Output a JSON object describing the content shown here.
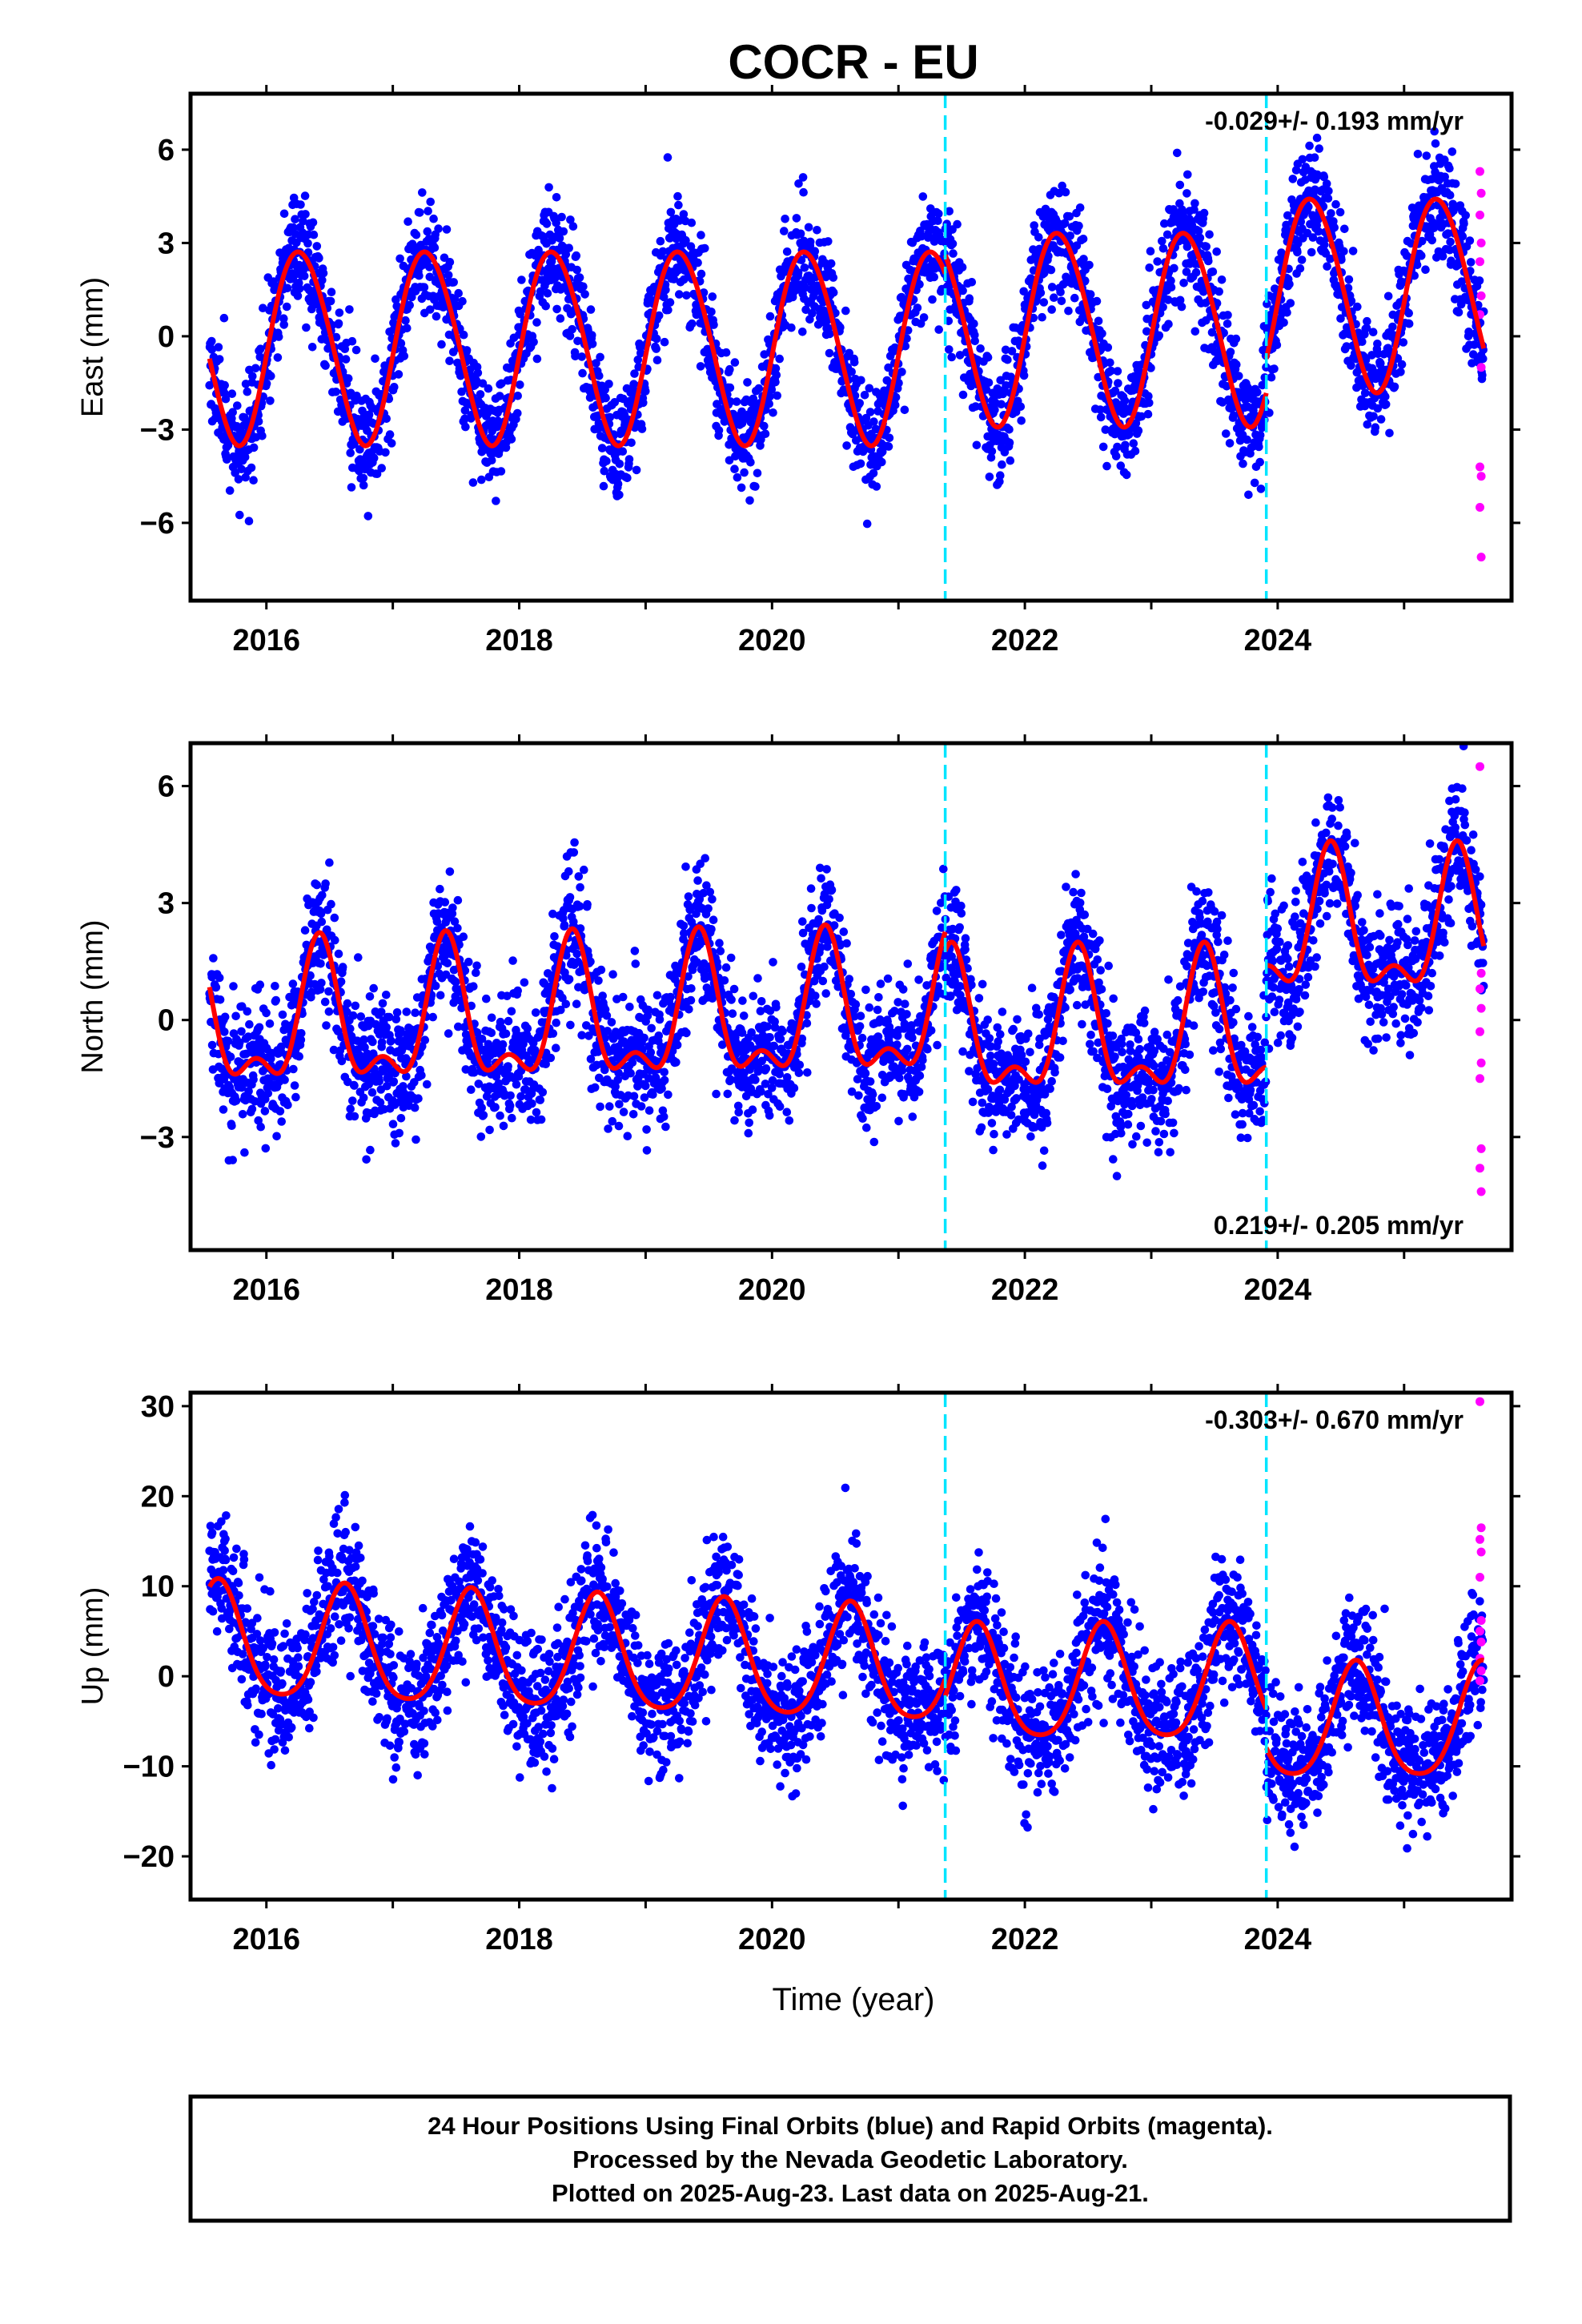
{
  "title": "COCR - EU",
  "colors": {
    "final": "#0000ff",
    "rapid": "#ff00ff",
    "model": "#ff0000",
    "event": "#00e5ff",
    "frame": "#000000"
  },
  "xlabel": "Time (year)",
  "footer": [
    "24 Hour Positions Using Final Orbits (blue) and Rapid Orbits (magenta).",
    "Processed by the Nevada Geodetic Laboratory.",
    "Plotted on 2025-Aug-23. Last data on 2025-Aug-21."
  ],
  "chart_data": [
    {
      "type": "scatter",
      "ylabel": "East (mm)",
      "rate_label": "-0.029+/- 0.193 mm/yr",
      "xlim": [
        2015.4,
        2025.85
      ],
      "ylim": [
        -8.5,
        7.8
      ],
      "x_ticks": [
        2016,
        2018,
        2020,
        2022,
        2024
      ],
      "x_tick_labels": [
        "2016",
        "2018",
        "2020",
        "2022",
        "2024"
      ],
      "y_ticks": [
        -6,
        -3,
        0,
        3,
        6
      ],
      "y_tick_labels": [
        "−6",
        "−3",
        "0",
        "3",
        "6"
      ],
      "event_lines": [
        2021.37,
        2023.91
      ],
      "model": {
        "segments": [
          {
            "start": 2015.55,
            "end": 2021.37,
            "offset": -0.3,
            "trend": 0.0,
            "annual_amp": 3.1,
            "annual_peak": 0.27,
            "semi_amp": 0.2,
            "semi_peak": 0.1
          },
          {
            "start": 2021.37,
            "end": 2023.91,
            "offset": 0.3,
            "trend": 0.0,
            "annual_amp": 3.1,
            "annual_peak": 0.27,
            "semi_amp": 0.2,
            "semi_peak": 0.1
          },
          {
            "start": 2023.91,
            "end": 2025.63,
            "offset": 1.4,
            "trend": 0.0,
            "annual_amp": 3.1,
            "annual_peak": 0.27,
            "semi_amp": 0.2,
            "semi_peak": 0.1
          }
        ],
        "scatter_sd": 0.9
      },
      "rapid_points": [
        {
          "x": 2025.6,
          "y": 5.3
        },
        {
          "x": 2025.61,
          "y": 4.6
        },
        {
          "x": 2025.6,
          "y": 3.9
        },
        {
          "x": 2025.61,
          "y": 3.0
        },
        {
          "x": 2025.6,
          "y": 2.4
        },
        {
          "x": 2025.61,
          "y": 1.3
        },
        {
          "x": 2025.6,
          "y": 0.7
        },
        {
          "x": 2025.61,
          "y": -1.0
        },
        {
          "x": 2025.6,
          "y": -4.2
        },
        {
          "x": 2025.61,
          "y": -4.5
        },
        {
          "x": 2025.6,
          "y": -5.5
        },
        {
          "x": 2025.61,
          "y": -7.1
        }
      ]
    },
    {
      "type": "scatter",
      "ylabel": "North (mm)",
      "rate_label": "0.219+/- 0.205 mm/yr",
      "xlim": [
        2015.4,
        2025.85
      ],
      "ylim": [
        -5.9,
        7.1
      ],
      "x_ticks": [
        2016,
        2018,
        2020,
        2022,
        2024
      ],
      "x_tick_labels": [
        "2016",
        "2018",
        "2020",
        "2022",
        "2024"
      ],
      "y_ticks": [
        -3,
        0,
        3,
        6
      ],
      "y_tick_labels": [
        "−3",
        "0",
        "3",
        "6"
      ],
      "event_lines": [
        2021.37,
        2023.91
      ],
      "model": {
        "segments": [
          {
            "start": 2015.55,
            "end": 2021.37,
            "offset": -0.2,
            "trend": 0.05,
            "annual_amp": 1.6,
            "annual_peak": 0.42,
            "semi_amp": 0.8,
            "semi_peak": 0.42
          },
          {
            "start": 2021.37,
            "end": 2023.91,
            "offset": -0.4,
            "trend": 0.0,
            "annual_amp": 1.6,
            "annual_peak": 0.42,
            "semi_amp": 0.8,
            "semi_peak": 0.42
          },
          {
            "start": 2023.91,
            "end": 2025.63,
            "offset": 2.2,
            "trend": 0.0,
            "annual_amp": 1.6,
            "annual_peak": 0.42,
            "semi_amp": 0.8,
            "semi_peak": 0.42
          }
        ],
        "scatter_sd": 0.85
      },
      "rapid_points": [
        {
          "x": 2025.6,
          "y": 6.5
        },
        {
          "x": 2025.61,
          "y": 1.2
        },
        {
          "x": 2025.6,
          "y": 0.8
        },
        {
          "x": 2025.61,
          "y": 0.3
        },
        {
          "x": 2025.6,
          "y": -0.3
        },
        {
          "x": 2025.61,
          "y": -1.1
        },
        {
          "x": 2025.6,
          "y": -1.5
        },
        {
          "x": 2025.61,
          "y": -3.3
        },
        {
          "x": 2025.6,
          "y": -3.8
        },
        {
          "x": 2025.61,
          "y": -4.4
        }
      ]
    },
    {
      "type": "scatter",
      "ylabel": "Up (mm)",
      "rate_label": "-0.303+/- 0.670 mm/yr",
      "xlim": [
        2015.4,
        2025.85
      ],
      "ylim": [
        -24.8,
        31.5
      ],
      "x_ticks": [
        2016,
        2018,
        2020,
        2022,
        2024
      ],
      "x_tick_labels": [
        "2016",
        "2018",
        "2020",
        "2022",
        "2024"
      ],
      "y_ticks": [
        -20,
        -10,
        0,
        10,
        20,
        30
      ],
      "y_tick_labels": [
        "−20",
        "−10",
        "0",
        "10",
        "20",
        "30"
      ],
      "event_lines": [
        2021.37,
        2023.91
      ],
      "model": {
        "segments": [
          {
            "start": 2015.55,
            "end": 2021.37,
            "offset": 3.6,
            "trend": -0.5,
            "annual_amp": 6.3,
            "annual_peak": 0.62,
            "semi_amp": 1.0,
            "semi_peak": 0.12
          },
          {
            "start": 2021.37,
            "end": 2023.91,
            "offset": -1.2,
            "trend": 0.0,
            "annual_amp": 6.3,
            "annual_peak": 0.62,
            "semi_amp": 1.0,
            "semi_peak": 0.12
          },
          {
            "start": 2023.91,
            "end": 2025.63,
            "offset": -5.5,
            "trend": 0.0,
            "annual_amp": 6.3,
            "annual_peak": 0.62,
            "semi_amp": 1.0,
            "semi_peak": 0.12
          }
        ],
        "scatter_sd": 3.6
      },
      "rapid_points": [
        {
          "x": 2025.6,
          "y": 30.5
        },
        {
          "x": 2025.61,
          "y": 16.5
        },
        {
          "x": 2025.6,
          "y": 15.2
        },
        {
          "x": 2025.61,
          "y": 13.8
        },
        {
          "x": 2025.6,
          "y": 11.0
        },
        {
          "x": 2025.61,
          "y": 6.2
        },
        {
          "x": 2025.6,
          "y": 5.0
        },
        {
          "x": 2025.61,
          "y": 3.8
        },
        {
          "x": 2025.6,
          "y": 2.0
        },
        {
          "x": 2025.61,
          "y": 0.6
        },
        {
          "x": 2025.6,
          "y": -0.5
        }
      ]
    }
  ]
}
